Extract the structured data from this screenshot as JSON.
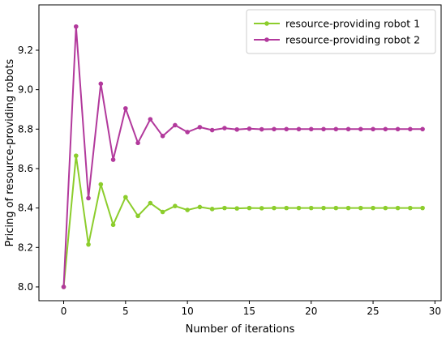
{
  "chart_data": {
    "type": "line",
    "title": "",
    "xlabel": "Number of iterations",
    "ylabel": "Pricing of resource-providing robots",
    "xlim": [
      -2,
      30.5
    ],
    "ylim": [
      7.93,
      9.43
    ],
    "xticks": [
      0,
      5,
      10,
      15,
      20,
      25,
      30
    ],
    "yticks": [
      8.0,
      8.2,
      8.4,
      8.6,
      8.8,
      9.0,
      9.2
    ],
    "xtick_labels": [
      "0",
      "5",
      "10",
      "15",
      "20",
      "25",
      "30"
    ],
    "ytick_labels": [
      "8.0",
      "8.2",
      "8.4",
      "8.6",
      "8.8",
      "9.0",
      "9.2"
    ],
    "grid": false,
    "legend_position": "top-right",
    "x": [
      0,
      1,
      2,
      3,
      4,
      5,
      6,
      7,
      8,
      9,
      10,
      11,
      12,
      13,
      14,
      15,
      16,
      17,
      18,
      19,
      20,
      21,
      22,
      23,
      24,
      25,
      26,
      27,
      28,
      29
    ],
    "series": [
      {
        "name": "resource-providing robot 1",
        "color": "#8ccd2c",
        "values": [
          8.0,
          8.665,
          8.215,
          8.52,
          8.315,
          8.455,
          8.36,
          8.425,
          8.38,
          8.41,
          8.39,
          8.405,
          8.395,
          8.4,
          8.398,
          8.4,
          8.399,
          8.4,
          8.4,
          8.4,
          8.4,
          8.4,
          8.4,
          8.4,
          8.4,
          8.4,
          8.4,
          8.4,
          8.4,
          8.4
        ]
      },
      {
        "name": "resource-providing robot 2",
        "color": "#b2399c",
        "values": [
          8.0,
          9.32,
          8.45,
          9.03,
          8.645,
          8.905,
          8.73,
          8.85,
          8.765,
          8.82,
          8.785,
          8.81,
          8.795,
          8.805,
          8.798,
          8.802,
          8.799,
          8.8,
          8.8,
          8.8,
          8.8,
          8.8,
          8.8,
          8.8,
          8.8,
          8.8,
          8.8,
          8.8,
          8.8,
          8.8
        ]
      }
    ]
  }
}
